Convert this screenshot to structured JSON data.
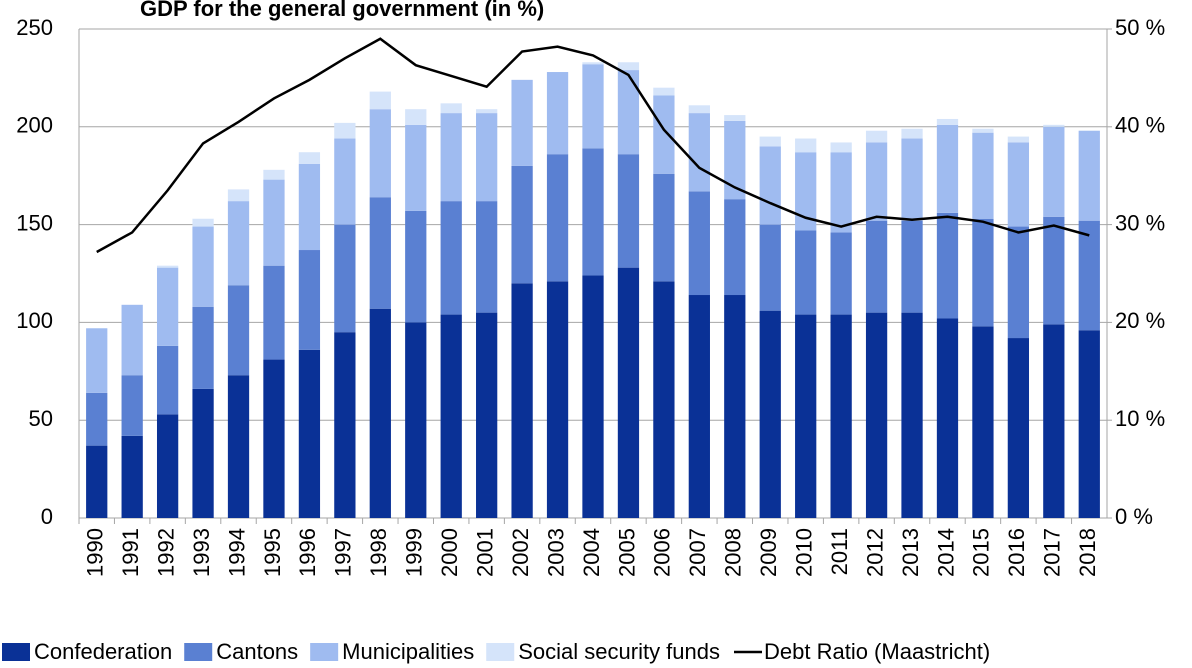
{
  "chart_data": {
    "type": "bar",
    "stacked": true,
    "title": "GDP for the general government (in %)",
    "categories": [
      "1990",
      "1991",
      "1992",
      "1993",
      "1994",
      "1995",
      "1996",
      "1997",
      "1998",
      "1999",
      "2000",
      "2001",
      "2002",
      "2003",
      "2004",
      "2005",
      "2006",
      "2007",
      "2008",
      "2009",
      "2010",
      "2011",
      "2012",
      "2013",
      "2014",
      "2015",
      "2016",
      "2017",
      "2018"
    ],
    "series": [
      {
        "name": "Confederation",
        "color": "#0a3196",
        "values": [
          37,
          42,
          53,
          66,
          73,
          81,
          86,
          95,
          107,
          100,
          104,
          105,
          120,
          121,
          124,
          128,
          121,
          114,
          114,
          106,
          104,
          104,
          105,
          105,
          102,
          98,
          92,
          99,
          96
        ]
      },
      {
        "name": "Cantons",
        "color": "#5a80d2",
        "values": [
          27,
          31,
          35,
          42,
          46,
          48,
          51,
          55,
          57,
          57,
          58,
          57,
          60,
          65,
          65,
          58,
          55,
          53,
          49,
          44,
          43,
          42,
          47,
          47,
          54,
          55,
          57,
          55,
          56
        ]
      },
      {
        "name": "Municipalities",
        "color": "#9fbbf0",
        "values": [
          33,
          36,
          40,
          41,
          43,
          44,
          44,
          44,
          45,
          44,
          45,
          45,
          44,
          42,
          43,
          43,
          40,
          40,
          40,
          40,
          40,
          41,
          40,
          42,
          45,
          44,
          43,
          46,
          46
        ]
      },
      {
        "name": "Social security funds",
        "color": "#d5e4fa",
        "values": [
          0,
          0,
          1,
          4,
          6,
          5,
          6,
          8,
          9,
          8,
          5,
          2,
          0,
          0,
          1,
          4,
          4,
          4,
          3,
          5,
          7,
          5,
          6,
          5,
          3,
          2,
          3,
          1,
          0
        ]
      },
      {
        "name": "Debt Ratio (Maastricht)",
        "color": "#000000",
        "axis": "y2",
        "values": [
          27.2,
          29.2,
          33.5,
          38.3,
          40.5,
          42.9,
          44.8,
          47.0,
          49.0,
          46.3,
          45.2,
          44.1,
          47.7,
          48.2,
          47.3,
          45.3,
          39.7,
          35.8,
          33.8,
          32.2,
          30.7,
          29.8,
          30.8,
          30.5,
          30.8,
          30.3,
          29.2,
          29.9,
          28.9
        ]
      }
    ],
    "ylim": [
      0,
      250
    ],
    "yticks": [
      0,
      50,
      100,
      150,
      200,
      250
    ],
    "y2lim": [
      0,
      50
    ],
    "y2ticks": [
      {
        "value": 0,
        "label": "0 %"
      },
      {
        "value": 10,
        "label": "10 %"
      },
      {
        "value": 20,
        "label": "20 %"
      },
      {
        "value": 30,
        "label": "30 %"
      },
      {
        "value": 40,
        "label": "40 %"
      },
      {
        "value": 50,
        "label": "50 %"
      }
    ],
    "grid": true,
    "legend": "bottom"
  }
}
